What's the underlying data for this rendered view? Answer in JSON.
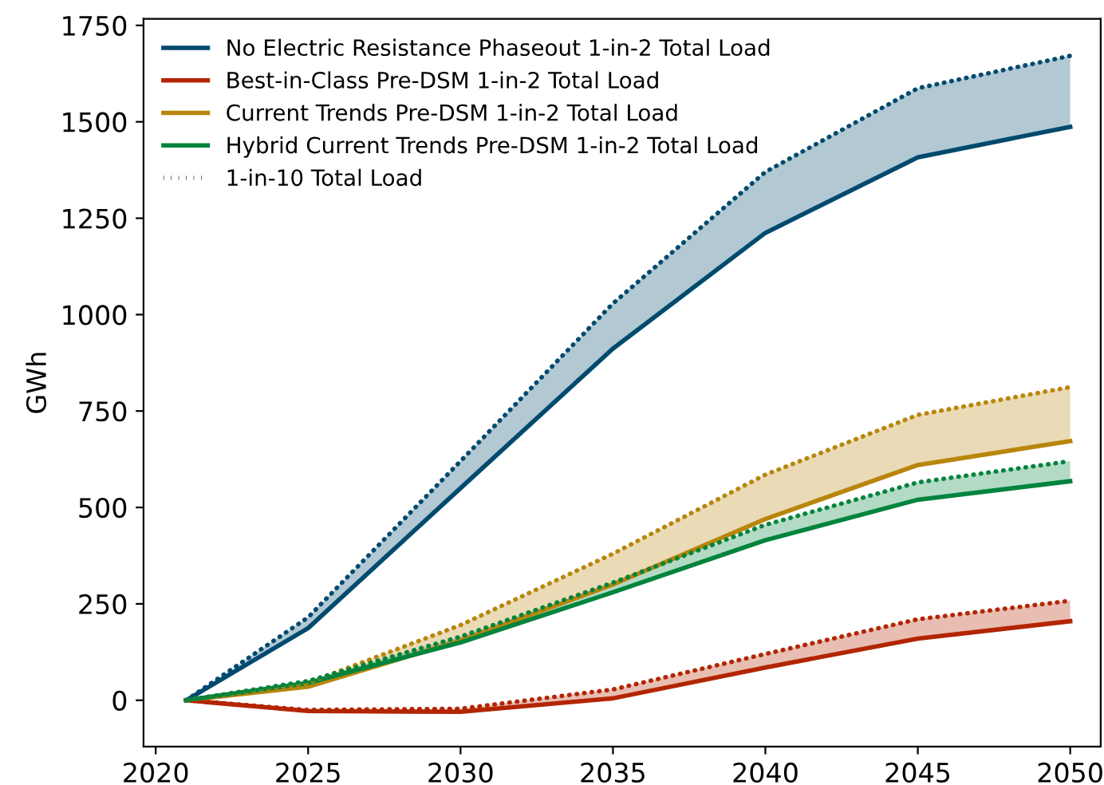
{
  "chart_data": {
    "type": "line",
    "ylabel": "GWh",
    "x": [
      2021,
      2025,
      2030,
      2035,
      2040,
      2045,
      2050
    ],
    "xlim": [
      2019.6,
      2051.0
    ],
    "xticks": [
      2020,
      2025,
      2030,
      2035,
      2040,
      2045,
      2050
    ],
    "ylim": [
      -120,
      1767
    ],
    "yticks": [
      0,
      250,
      500,
      750,
      1000,
      1250,
      1500,
      1750
    ],
    "grid": false,
    "legend": "top left",
    "line_style": "solid",
    "marker": "none",
    "series": [
      {
        "name": "No Electric Resistance Phaseout 1-in-2 Total Load",
        "color": "#004a6e",
        "values": [
          0,
          187,
          550,
          912,
          1212,
          1408,
          1487
        ],
        "lower": [
          0,
          187,
          550,
          912,
          1212,
          1408,
          1487
        ],
        "upper": [
          0,
          215,
          620,
          1029,
          1370,
          1587,
          1671
        ]
      },
      {
        "name": "Best-in-Class Pre-DSM 1-in-2 Total Load",
        "color": "#b32500",
        "values": [
          0,
          -28,
          -30,
          5,
          85,
          160,
          205
        ],
        "lower": [
          0,
          -28,
          -30,
          5,
          85,
          160,
          205
        ],
        "upper": [
          0,
          -25,
          -22,
          28,
          120,
          210,
          258
        ]
      },
      {
        "name": "Current Trends Pre-DSM 1-in-2 Total Load",
        "color": "#b8860b",
        "values": [
          0,
          35,
          155,
          300,
          470,
          610,
          672
        ],
        "lower": [
          0,
          35,
          155,
          300,
          470,
          610,
          672
        ],
        "upper": [
          0,
          45,
          195,
          380,
          585,
          740,
          812
        ]
      },
      {
        "name": "Hybrid Current Trends Pre-DSM 1-in-2 Total Load",
        "color": "#00843d",
        "values": [
          0,
          45,
          150,
          280,
          415,
          520,
          568
        ],
        "lower": [
          0,
          45,
          150,
          280,
          415,
          520,
          568
        ],
        "upper": [
          0,
          50,
          165,
          305,
          455,
          565,
          620
        ]
      },
      {
        "color": "#004a6e",
        "line_style": "dotted",
        "values": [
          0,
          215,
          620,
          1029,
          1370,
          1587,
          1671
        ]
      },
      {
        "color": "#b32500",
        "line_style": "dotted",
        "values": [
          0,
          -25,
          -22,
          28,
          120,
          210,
          258
        ]
      },
      {
        "color": "#b8860b",
        "line_style": "dotted",
        "values": [
          0,
          45,
          195,
          380,
          585,
          740,
          812
        ]
      },
      {
        "color": "#00843d",
        "line_style": "dotted",
        "values": [
          0,
          50,
          165,
          305,
          455,
          565,
          620
        ]
      },
      {
        "name": "1-in-10 Total Load",
        "color": "#000000",
        "line_style": "dotted",
        "values": [
          null,
          null,
          null,
          null,
          null,
          null,
          null
        ]
      }
    ]
  }
}
